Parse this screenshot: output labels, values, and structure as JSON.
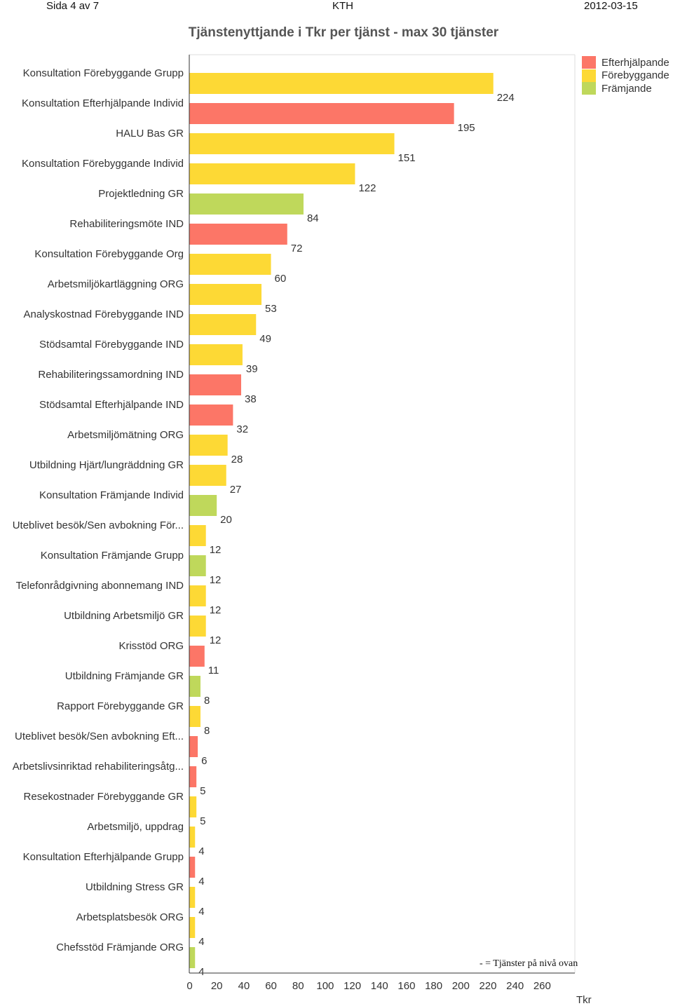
{
  "header": {
    "page": "Sida 4 av 7",
    "org": "KTH",
    "date": "2012-03-15"
  },
  "chart_data": {
    "type": "bar",
    "orientation": "horizontal",
    "title": "Tjänstenyttjande i Tkr per tjänst - max 30 tjänster",
    "xlabel": "Tkr",
    "xlim": [
      0,
      260
    ],
    "xticks": [
      0,
      20,
      40,
      60,
      80,
      100,
      120,
      140,
      160,
      180,
      200,
      220,
      240,
      260
    ],
    "grid": false,
    "legend_position": "top-right",
    "legend": [
      {
        "name": "Efterhjälpande",
        "color": "#fc7667"
      },
      {
        "name": "Förebyggande",
        "color": "#fdd935"
      },
      {
        "name": "Främjande",
        "color": "#bfd85b"
      }
    ],
    "note": "- = Tjänster på nivå ovan",
    "bars": [
      {
        "label": "Konsultation Förebyggande Grupp",
        "value": 224,
        "category": "Förebyggande"
      },
      {
        "label": "Konsultation Efterhjälpande Individ",
        "value": 195,
        "category": "Efterhjälpande"
      },
      {
        "label": "HALU Bas GR",
        "value": 151,
        "category": "Förebyggande"
      },
      {
        "label": "Konsultation Förebyggande Individ",
        "value": 122,
        "category": "Förebyggande"
      },
      {
        "label": "Projektledning GR",
        "value": 84,
        "category": "Främjande"
      },
      {
        "label": "Rehabiliteringsmöte IND",
        "value": 72,
        "category": "Efterhjälpande"
      },
      {
        "label": "Konsultation Förebyggande Org",
        "value": 60,
        "category": "Förebyggande"
      },
      {
        "label": "Arbetsmiljökartläggning ORG",
        "value": 53,
        "category": "Förebyggande"
      },
      {
        "label": "Analyskostnad Förebyggande IND",
        "value": 49,
        "category": "Förebyggande"
      },
      {
        "label": "Stödsamtal Förebyggande IND",
        "value": 39,
        "category": "Förebyggande"
      },
      {
        "label": "Rehabiliteringssamordning IND",
        "value": 38,
        "category": "Efterhjälpande"
      },
      {
        "label": "Stödsamtal Efterhjälpande IND",
        "value": 32,
        "category": "Efterhjälpande"
      },
      {
        "label": "Arbetsmiljömätning ORG",
        "value": 28,
        "category": "Förebyggande"
      },
      {
        "label": "Utbildning Hjärt/lungräddning GR",
        "value": 27,
        "category": "Förebyggande"
      },
      {
        "label": "Konsultation Främjande Individ",
        "value": 20,
        "category": "Främjande"
      },
      {
        "label": "Uteblivet besök/Sen avbokning För...",
        "value": 12,
        "category": "Förebyggande"
      },
      {
        "label": "Konsultation Främjande Grupp",
        "value": 12,
        "category": "Främjande"
      },
      {
        "label": "Telefonrådgivning abonnemang IND",
        "value": 12,
        "category": "Förebyggande"
      },
      {
        "label": "Utbildning Arbetsmiljö GR",
        "value": 12,
        "category": "Förebyggande"
      },
      {
        "label": "Krisstöd ORG",
        "value": 11,
        "category": "Efterhjälpande"
      },
      {
        "label": "Utbildning Främjande GR",
        "value": 8,
        "category": "Främjande"
      },
      {
        "label": "Rapport Förebyggande GR",
        "value": 8,
        "category": "Förebyggande"
      },
      {
        "label": "Uteblivet besök/Sen avbokning Eft...",
        "value": 6,
        "category": "Efterhjälpande"
      },
      {
        "label": "Arbetslivsinriktad rehabiliteringsåtg...",
        "value": 5,
        "category": "Efterhjälpande"
      },
      {
        "label": "Resekostnader Förebyggande GR",
        "value": 5,
        "category": "Förebyggande"
      },
      {
        "label": "Arbetsmiljö, uppdrag",
        "value": 4,
        "category": "Förebyggande"
      },
      {
        "label": "Konsultation Efterhjälpande Grupp",
        "value": 4,
        "category": "Efterhjälpande"
      },
      {
        "label": "Utbildning Stress GR",
        "value": 4,
        "category": "Förebyggande"
      },
      {
        "label": "Arbetsplatsbesök ORG",
        "value": 4,
        "category": "Förebyggande"
      },
      {
        "label": "Chefsstöd Främjande ORG",
        "value": 4,
        "category": "Främjande"
      }
    ]
  }
}
